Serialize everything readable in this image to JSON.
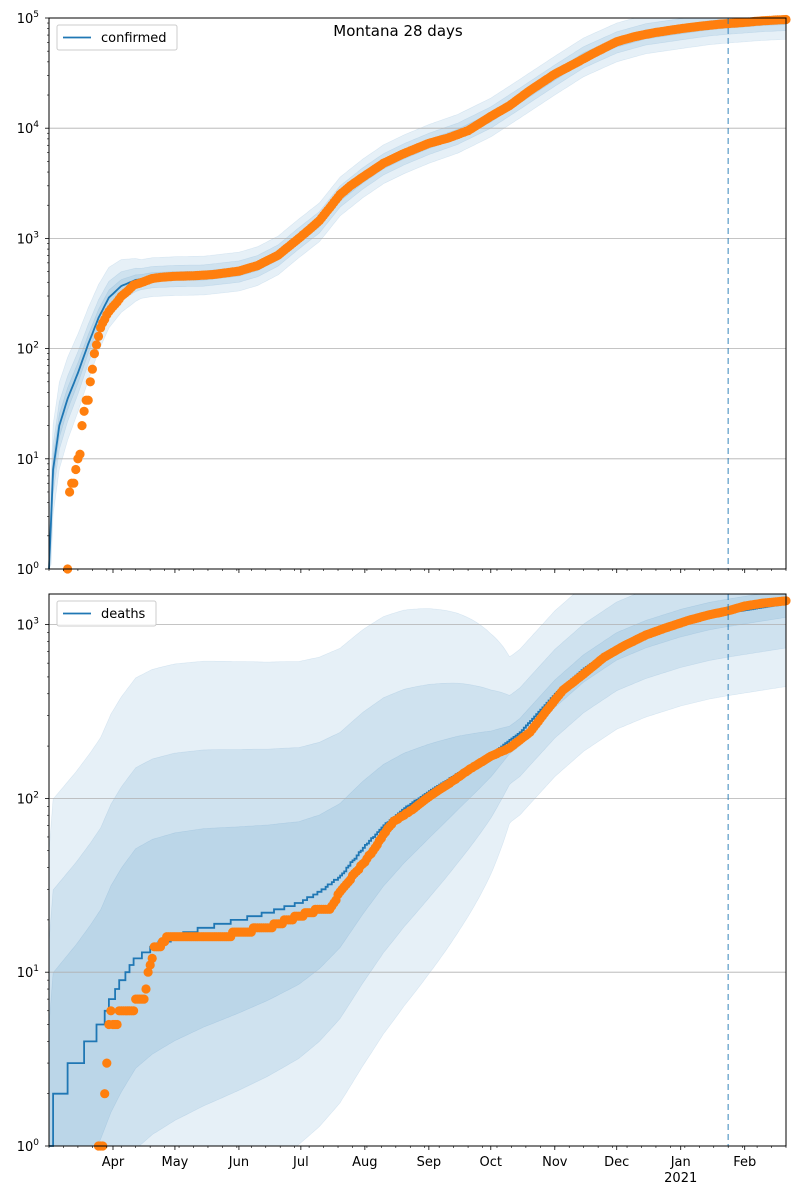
{
  "title": "Montana 28 days",
  "colors": {
    "model_line": "#1f77b4",
    "band": "#1f77b4",
    "observed": "#ff7f0e",
    "forecast_marker": "#1f77b4",
    "grid": "#b0b0b0"
  },
  "x_axis": {
    "start": "2020-03-01",
    "end": "2021-02-21",
    "forecast_start": "2021-01-24",
    "ticks": [
      {
        "date": "2020-04-01",
        "label": "Apr"
      },
      {
        "date": "2020-05-01",
        "label": "May"
      },
      {
        "date": "2020-06-01",
        "label": "Jun"
      },
      {
        "date": "2020-07-01",
        "label": "Jul"
      },
      {
        "date": "2020-08-01",
        "label": "Aug"
      },
      {
        "date": "2020-09-01",
        "label": "Sep"
      },
      {
        "date": "2020-10-01",
        "label": "Oct"
      },
      {
        "date": "2020-11-01",
        "label": "Nov"
      },
      {
        "date": "2020-12-01",
        "label": "Dec"
      },
      {
        "date": "2021-01-01",
        "label": "Jan"
      },
      {
        "date": "2021-02-01",
        "label": "Feb"
      }
    ],
    "year_label": "2021"
  },
  "chart_data": [
    {
      "type": "line",
      "scale": "log",
      "ylim": [
        1,
        100000
      ],
      "y_ticks": [
        {
          "value": 1,
          "base": "10",
          "exp": "0"
        },
        {
          "value": 10,
          "base": "10",
          "exp": "1"
        },
        {
          "value": 100,
          "base": "10",
          "exp": "2"
        },
        {
          "value": 1000,
          "base": "10",
          "exp": "3"
        },
        {
          "value": 10000,
          "base": "10",
          "exp": "4"
        },
        {
          "value": 100000,
          "base": "10",
          "exp": "5"
        }
      ],
      "legend": {
        "label": "confirmed",
        "position": "top-left"
      },
      "grid": true,
      "model": [
        [
          "2020-03-01",
          1
        ],
        [
          "2020-03-03",
          8
        ],
        [
          "2020-03-06",
          20
        ],
        [
          "2020-03-10",
          35
        ],
        [
          "2020-03-15",
          60
        ],
        [
          "2020-03-20",
          110
        ],
        [
          "2020-03-25",
          190
        ],
        [
          "2020-03-30",
          290
        ],
        [
          "2020-04-05",
          370
        ],
        [
          "2020-04-12",
          420
        ],
        [
          "2020-04-20",
          445
        ],
        [
          "2020-05-01",
          455
        ],
        [
          "2020-05-15",
          460
        ],
        [
          "2020-06-01",
          500
        ],
        [
          "2020-06-10",
          560
        ],
        [
          "2020-06-20",
          700
        ],
        [
          "2020-06-30",
          1000
        ],
        [
          "2020-07-10",
          1400
        ],
        [
          "2020-07-20",
          2400
        ],
        [
          "2020-07-31",
          3500
        ],
        [
          "2020-08-10",
          4700
        ],
        [
          "2020-08-20",
          5800
        ],
        [
          "2020-09-01",
          7200
        ],
        [
          "2020-09-15",
          8900
        ],
        [
          "2020-10-01",
          12500
        ],
        [
          "2020-10-15",
          18500
        ],
        [
          "2020-11-01",
          30000
        ],
        [
          "2020-11-15",
          44000
        ],
        [
          "2020-12-01",
          60000
        ],
        [
          "2020-12-15",
          71000
        ],
        [
          "2021-01-01",
          79000
        ],
        [
          "2021-01-15",
          86000
        ],
        [
          "2021-01-24",
          89000
        ],
        [
          "2021-02-10",
          94000
        ],
        [
          "2021-02-21",
          96000
        ]
      ],
      "observed": [
        [
          "2020-03-10",
          1
        ],
        [
          "2020-03-11",
          5
        ],
        [
          "2020-03-12",
          6
        ],
        [
          "2020-03-13",
          6
        ],
        [
          "2020-03-14",
          8
        ],
        [
          "2020-03-15",
          10
        ],
        [
          "2020-03-16",
          11
        ],
        [
          "2020-03-17",
          20
        ],
        [
          "2020-03-18",
          27
        ],
        [
          "2020-03-19",
          34
        ],
        [
          "2020-03-20",
          34
        ],
        [
          "2020-03-21",
          50
        ],
        [
          "2020-03-22",
          65
        ],
        [
          "2020-03-23",
          90
        ],
        [
          "2020-03-24",
          108
        ],
        [
          "2020-03-25",
          129
        ],
        [
          "2020-03-26",
          154
        ],
        [
          "2020-03-27",
          171
        ],
        [
          "2020-03-28",
          184
        ],
        [
          "2020-03-29",
          203
        ],
        [
          "2020-03-30",
          217
        ],
        [
          "2020-04-01",
          241
        ],
        [
          "2020-04-03",
          265
        ],
        [
          "2020-04-05",
          298
        ],
        [
          "2020-04-08",
          332
        ],
        [
          "2020-04-11",
          377
        ],
        [
          "2020-04-15",
          399
        ],
        [
          "2020-04-20",
          433
        ],
        [
          "2020-04-25",
          445
        ],
        [
          "2020-05-01",
          453
        ],
        [
          "2020-05-10",
          458
        ],
        [
          "2020-05-20",
          471
        ],
        [
          "2020-06-01",
          505
        ],
        [
          "2020-06-10",
          567
        ],
        [
          "2020-06-20",
          705
        ],
        [
          "2020-06-30",
          1000
        ],
        [
          "2020-07-05",
          1200
        ],
        [
          "2020-07-10",
          1450
        ],
        [
          "2020-07-15",
          1900
        ],
        [
          "2020-07-20",
          2500
        ],
        [
          "2020-07-25",
          3000
        ],
        [
          "2020-07-31",
          3600
        ],
        [
          "2020-08-10",
          4800
        ],
        [
          "2020-08-20",
          5900
        ],
        [
          "2020-09-01",
          7300
        ],
        [
          "2020-09-10",
          8100
        ],
        [
          "2020-09-20",
          9500
        ],
        [
          "2020-10-01",
          12800
        ],
        [
          "2020-10-10",
          16000
        ],
        [
          "2020-10-20",
          22000
        ],
        [
          "2020-11-01",
          31000
        ],
        [
          "2020-11-10",
          38000
        ],
        [
          "2020-11-20",
          48000
        ],
        [
          "2020-12-01",
          61000
        ],
        [
          "2020-12-10",
          68000
        ],
        [
          "2020-12-20",
          74000
        ],
        [
          "2021-01-01",
          80000
        ],
        [
          "2021-01-10",
          84000
        ],
        [
          "2021-01-20",
          88000
        ],
        [
          "2021-01-31",
          91000
        ],
        [
          "2021-02-10",
          94500
        ],
        [
          "2021-02-21",
          97000
        ]
      ]
    },
    {
      "type": "line",
      "scale": "log",
      "ylim": [
        1,
        1500
      ],
      "y_ticks": [
        {
          "value": 1,
          "base": "10",
          "exp": "0"
        },
        {
          "value": 10,
          "base": "10",
          "exp": "1"
        },
        {
          "value": 100,
          "base": "10",
          "exp": "2"
        },
        {
          "value": 1000,
          "base": "10",
          "exp": "3"
        }
      ],
      "legend": {
        "label": "deaths",
        "position": "top-left"
      },
      "grid": true,
      "model": [
        [
          "2020-03-01",
          1
        ],
        [
          "2020-03-03",
          2
        ],
        [
          "2020-03-14",
          3
        ],
        [
          "2020-03-21",
          4
        ],
        [
          "2020-03-26",
          5
        ],
        [
          "2020-03-31",
          7
        ],
        [
          "2020-04-05",
          9
        ],
        [
          "2020-04-12",
          12
        ],
        [
          "2020-04-20",
          14
        ],
        [
          "2020-05-01",
          16
        ],
        [
          "2020-05-15",
          18
        ],
        [
          "2020-06-01",
          20
        ],
        [
          "2020-06-15",
          22
        ],
        [
          "2020-06-30",
          25
        ],
        [
          "2020-07-10",
          29
        ],
        [
          "2020-07-20",
          36
        ],
        [
          "2020-07-31",
          52
        ],
        [
          "2020-08-10",
          70
        ],
        [
          "2020-08-20",
          88
        ],
        [
          "2020-09-01",
          110
        ],
        [
          "2020-09-15",
          140
        ],
        [
          "2020-10-01",
          180
        ],
        [
          "2020-10-15",
          240
        ],
        [
          "2020-11-01",
          400
        ],
        [
          "2020-11-15",
          560
        ],
        [
          "2020-12-01",
          750
        ],
        [
          "2020-12-15",
          880
        ],
        [
          "2021-01-01",
          1020
        ],
        [
          "2021-01-15",
          1120
        ],
        [
          "2021-01-24",
          1170
        ],
        [
          "2021-02-10",
          1260
        ],
        [
          "2021-02-21",
          1320
        ]
      ],
      "observed": [
        [
          "2020-03-25",
          1
        ],
        [
          "2020-03-26",
          1
        ],
        [
          "2020-03-27",
          1
        ],
        [
          "2020-03-30",
          5
        ],
        [
          "2020-03-31",
          6
        ],
        [
          "2020-04-02",
          5
        ],
        [
          "2020-04-04",
          6
        ],
        [
          "2020-04-07",
          6
        ],
        [
          "2020-04-10",
          6
        ],
        [
          "2020-04-13",
          7
        ],
        [
          "2020-04-15",
          7
        ],
        [
          "2020-04-17",
          8
        ],
        [
          "2020-04-18",
          10
        ],
        [
          "2020-04-20",
          12
        ],
        [
          "2020-04-21",
          14
        ],
        [
          "2020-04-24",
          14
        ],
        [
          "2020-04-27",
          16
        ],
        [
          "2020-05-10",
          16
        ],
        [
          "2020-05-25",
          16
        ],
        [
          "2020-06-01",
          17
        ],
        [
          "2020-06-05",
          17
        ],
        [
          "2020-06-10",
          18
        ],
        [
          "2020-06-15",
          18
        ],
        [
          "2020-06-20",
          19
        ],
        [
          "2020-06-25",
          20
        ],
        [
          "2020-06-30",
          21
        ],
        [
          "2020-07-05",
          22
        ],
        [
          "2020-07-10",
          23
        ],
        [
          "2020-07-15",
          23
        ],
        [
          "2020-07-17",
          25
        ],
        [
          "2020-07-20",
          29
        ],
        [
          "2020-07-24",
          33
        ],
        [
          "2020-07-27",
          37
        ],
        [
          "2020-07-31",
          42
        ],
        [
          "2020-08-05",
          50
        ],
        [
          "2020-08-10",
          62
        ],
        [
          "2020-08-15",
          74
        ],
        [
          "2020-08-20",
          80
        ],
        [
          "2020-08-25",
          88
        ],
        [
          "2020-09-01",
          102
        ],
        [
          "2020-09-10",
          120
        ],
        [
          "2020-09-20",
          145
        ],
        [
          "2020-10-01",
          175
        ],
        [
          "2020-10-10",
          195
        ],
        [
          "2020-10-20",
          240
        ],
        [
          "2020-10-28",
          320
        ],
        [
          "2020-11-05",
          420
        ],
        [
          "2020-11-15",
          520
        ],
        [
          "2020-11-25",
          650
        ],
        [
          "2020-12-05",
          760
        ],
        [
          "2020-12-15",
          870
        ],
        [
          "2020-12-25",
          960
        ],
        [
          "2021-01-05",
          1060
        ],
        [
          "2021-01-15",
          1140
        ],
        [
          "2021-01-24",
          1200
        ],
        [
          "2021-02-01",
          1280
        ],
        [
          "2021-02-10",
          1330
        ],
        [
          "2021-02-21",
          1370
        ]
      ]
    }
  ]
}
